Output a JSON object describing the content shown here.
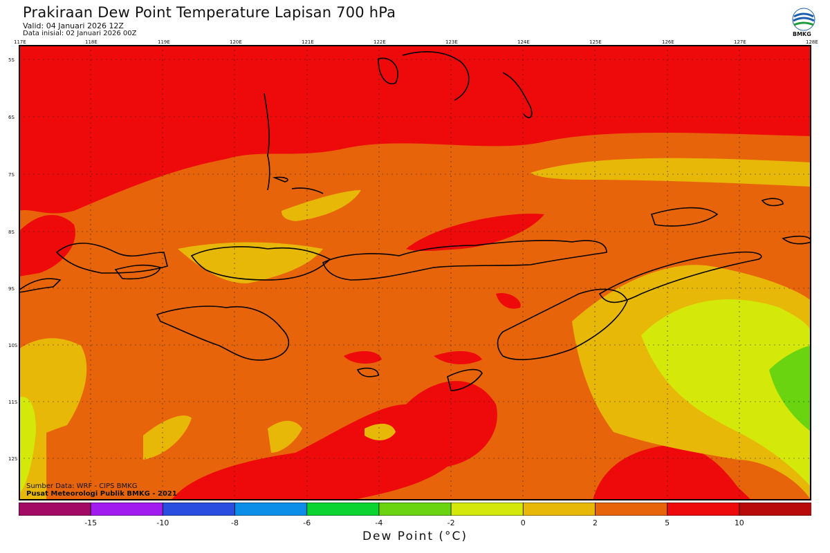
{
  "header": {
    "title": "Prakiraan Dew Point Temperature Lapisan 700 hPa",
    "valid": "Valid: 04 Januari 2026 12Z",
    "init": "Data inisial: 02 Januari 2026 00Z"
  },
  "logo": {
    "text": "BMKG"
  },
  "map": {
    "lon_labels": [
      "117E",
      "118E",
      "119E",
      "120E",
      "121E",
      "122E",
      "123E",
      "124E",
      "125E",
      "126E",
      "127E",
      "128E"
    ],
    "lat_labels": [
      "5S",
      "6S",
      "7S",
      "8S",
      "9S",
      "10S",
      "11S",
      "12S"
    ],
    "credit_source": "Sumber Data: WRF - CIPS BMKG",
    "credit_center": "Pusat Meteorologi Publik BMKG - 2021"
  },
  "colorbar": {
    "colors": [
      "#a30a64",
      "#a21cf0",
      "#2a4fe0",
      "#0a8ee8",
      "#0ad430",
      "#6ad410",
      "#d4e80a",
      "#e8b808",
      "#e8640a",
      "#ee0a0a",
      "#b80a0a"
    ],
    "tick_labels": [
      "-15",
      "-10",
      "-8",
      "-6",
      "-4",
      "-2",
      "0",
      "2",
      "5",
      "10"
    ],
    "label": "Dew Point (°C)"
  }
}
